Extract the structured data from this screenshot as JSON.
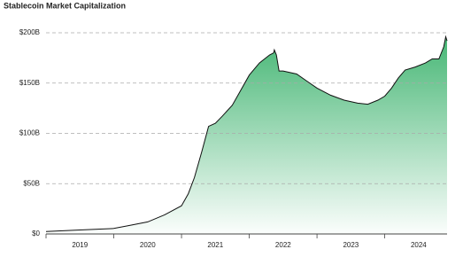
{
  "chart_data": {
    "type": "area",
    "title": "Stablecoin Market Capitalization",
    "x": [
      2019.0,
      2019.5,
      2020.0,
      2020.2,
      2020.5,
      2020.75,
      2021.0,
      2021.1,
      2021.19,
      2021.3,
      2021.4,
      2021.5,
      2021.6,
      2021.75,
      2021.85,
      2022.0,
      2022.15,
      2022.3,
      2022.36,
      2022.37,
      2022.4,
      2022.44,
      2022.5,
      2022.7,
      2022.85,
      2023.0,
      2023.2,
      2023.4,
      2023.6,
      2023.75,
      2023.9,
      2024.0,
      2024.1,
      2024.2,
      2024.3,
      2024.45,
      2024.6,
      2024.7,
      2024.8,
      2024.87,
      2024.9,
      2024.92
    ],
    "series": [
      {
        "color": "#111111",
        "fill": "#3db36e",
        "values": [
          2.5,
          4,
          5.5,
          8,
          12,
          19,
          28,
          40,
          56,
          82,
          107,
          110,
          117,
          128,
          140,
          158,
          170,
          178,
          180,
          183,
          178,
          162,
          162,
          159,
          152,
          145,
          138,
          133,
          130,
          129,
          133,
          137,
          145,
          155,
          163,
          166,
          170,
          174,
          174,
          186,
          196,
          192
        ]
      }
    ],
    "xlim": [
      2019,
      2024.92
    ],
    "xticks": [
      2019,
      2020,
      2021,
      2022,
      2023,
      2024
    ],
    "ylim": [
      0,
      200
    ],
    "yticks": [
      {
        "value": 0,
        "label": "$0"
      },
      {
        "value": 50,
        "label": "$50B"
      },
      {
        "value": 100,
        "label": "$100B"
      },
      {
        "value": 150,
        "label": "$150B"
      },
      {
        "value": 200,
        "label": "$200B"
      }
    ],
    "grid": true
  }
}
